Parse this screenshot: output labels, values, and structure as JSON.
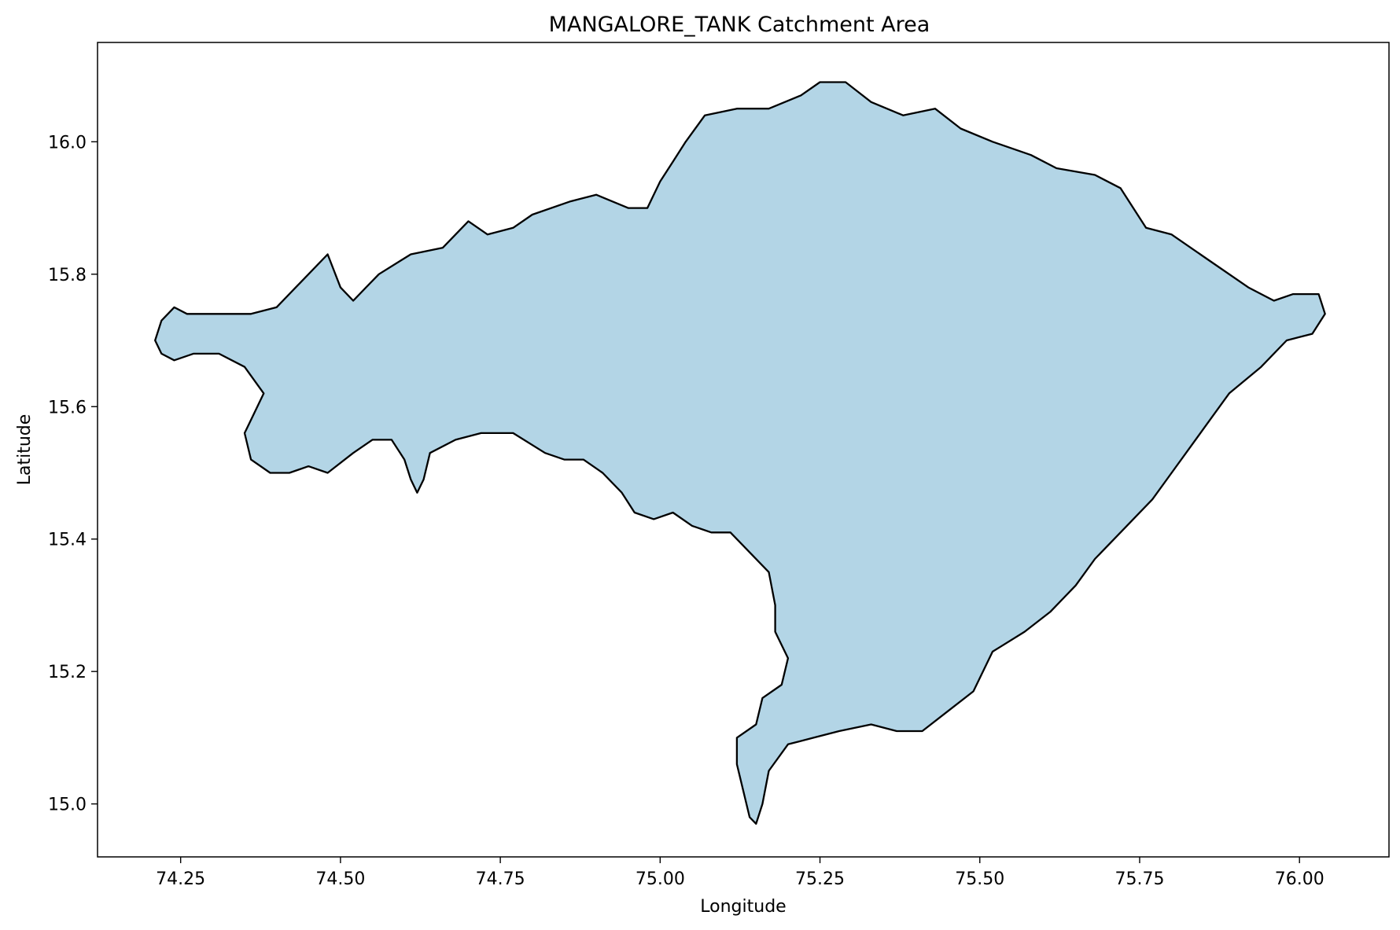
{
  "chart_data": {
    "type": "area",
    "title": "MANGALORE_TANK Catchment Area",
    "xlabel": "Longitude",
    "ylabel": "Latitude",
    "xlim": [
      74.12,
      76.14
    ],
    "ylim": [
      14.92,
      16.15
    ],
    "xticks": [
      {
        "value": 74.25,
        "label": "74.25"
      },
      {
        "value": 74.5,
        "label": "74.50"
      },
      {
        "value": 74.75,
        "label": "74.75"
      },
      {
        "value": 75.0,
        "label": "75.00"
      },
      {
        "value": 75.25,
        "label": "75.25"
      },
      {
        "value": 75.5,
        "label": "75.50"
      },
      {
        "value": 75.75,
        "label": "75.75"
      },
      {
        "value": 76.0,
        "label": "76.00"
      }
    ],
    "yticks": [
      {
        "value": 15.0,
        "label": "15.0"
      },
      {
        "value": 15.2,
        "label": "15.2"
      },
      {
        "value": 15.4,
        "label": "15.4"
      },
      {
        "value": 15.6,
        "label": "15.6"
      },
      {
        "value": 15.8,
        "label": "15.8"
      },
      {
        "value": 16.0,
        "label": "16.0"
      }
    ],
    "grid": false,
    "legend": "none",
    "fill_color": "#b3d5e6",
    "edge_color": "#000000",
    "polygon": [
      [
        74.21,
        15.7
      ],
      [
        74.22,
        15.68
      ],
      [
        74.24,
        15.67
      ],
      [
        74.27,
        15.68
      ],
      [
        74.31,
        15.68
      ],
      [
        74.35,
        15.66
      ],
      [
        74.38,
        15.62
      ],
      [
        74.36,
        15.58
      ],
      [
        74.35,
        15.56
      ],
      [
        74.36,
        15.52
      ],
      [
        74.39,
        15.5
      ],
      [
        74.42,
        15.5
      ],
      [
        74.45,
        15.51
      ],
      [
        74.48,
        15.5
      ],
      [
        74.52,
        15.53
      ],
      [
        74.55,
        15.55
      ],
      [
        74.58,
        15.55
      ],
      [
        74.6,
        15.52
      ],
      [
        74.61,
        15.49
      ],
      [
        74.62,
        15.47
      ],
      [
        74.63,
        15.49
      ],
      [
        74.64,
        15.53
      ],
      [
        74.68,
        15.55
      ],
      [
        74.72,
        15.56
      ],
      [
        74.77,
        15.56
      ],
      [
        74.82,
        15.53
      ],
      [
        74.85,
        15.52
      ],
      [
        74.88,
        15.52
      ],
      [
        74.91,
        15.5
      ],
      [
        74.94,
        15.47
      ],
      [
        74.96,
        15.44
      ],
      [
        74.99,
        15.43
      ],
      [
        75.02,
        15.44
      ],
      [
        75.05,
        15.42
      ],
      [
        75.08,
        15.41
      ],
      [
        75.11,
        15.41
      ],
      [
        75.14,
        15.38
      ],
      [
        75.17,
        15.35
      ],
      [
        75.18,
        15.3
      ],
      [
        75.18,
        15.26
      ],
      [
        75.2,
        15.22
      ],
      [
        75.19,
        15.18
      ],
      [
        75.16,
        15.16
      ],
      [
        75.15,
        15.12
      ],
      [
        75.12,
        15.1
      ],
      [
        75.12,
        15.06
      ],
      [
        75.13,
        15.02
      ],
      [
        75.14,
        14.98
      ],
      [
        75.15,
        14.97
      ],
      [
        75.16,
        15.0
      ],
      [
        75.17,
        15.05
      ],
      [
        75.2,
        15.09
      ],
      [
        75.24,
        15.1
      ],
      [
        75.28,
        15.11
      ],
      [
        75.33,
        15.12
      ],
      [
        75.37,
        15.11
      ],
      [
        75.41,
        15.11
      ],
      [
        75.45,
        15.14
      ],
      [
        75.49,
        15.17
      ],
      [
        75.52,
        15.23
      ],
      [
        75.57,
        15.26
      ],
      [
        75.61,
        15.29
      ],
      [
        75.65,
        15.33
      ],
      [
        75.68,
        15.37
      ],
      [
        75.73,
        15.42
      ],
      [
        75.77,
        15.46
      ],
      [
        75.8,
        15.5
      ],
      [
        75.83,
        15.54
      ],
      [
        75.86,
        15.58
      ],
      [
        75.89,
        15.62
      ],
      [
        75.94,
        15.66
      ],
      [
        75.98,
        15.7
      ],
      [
        76.02,
        15.71
      ],
      [
        76.04,
        15.74
      ],
      [
        76.03,
        15.77
      ],
      [
        75.99,
        15.77
      ],
      [
        75.96,
        15.76
      ],
      [
        75.92,
        15.78
      ],
      [
        75.86,
        15.82
      ],
      [
        75.8,
        15.86
      ],
      [
        75.76,
        15.87
      ],
      [
        75.74,
        15.9
      ],
      [
        75.72,
        15.93
      ],
      [
        75.68,
        15.95
      ],
      [
        75.62,
        15.96
      ],
      [
        75.58,
        15.98
      ],
      [
        75.52,
        16.0
      ],
      [
        75.47,
        16.02
      ],
      [
        75.43,
        16.05
      ],
      [
        75.38,
        16.04
      ],
      [
        75.33,
        16.06
      ],
      [
        75.29,
        16.09
      ],
      [
        75.25,
        16.09
      ],
      [
        75.22,
        16.07
      ],
      [
        75.17,
        16.05
      ],
      [
        75.12,
        16.05
      ],
      [
        75.07,
        16.04
      ],
      [
        75.04,
        16.0
      ],
      [
        75.02,
        15.97
      ],
      [
        75.0,
        15.94
      ],
      [
        74.98,
        15.9
      ],
      [
        74.95,
        15.9
      ],
      [
        74.9,
        15.92
      ],
      [
        74.86,
        15.91
      ],
      [
        74.8,
        15.89
      ],
      [
        74.77,
        15.87
      ],
      [
        74.73,
        15.86
      ],
      [
        74.7,
        15.88
      ],
      [
        74.66,
        15.84
      ],
      [
        74.61,
        15.83
      ],
      [
        74.56,
        15.8
      ],
      [
        74.54,
        15.78
      ],
      [
        74.52,
        15.76
      ],
      [
        74.5,
        15.78
      ],
      [
        74.48,
        15.83
      ],
      [
        74.45,
        15.8
      ],
      [
        74.43,
        15.78
      ],
      [
        74.4,
        15.75
      ],
      [
        74.36,
        15.74
      ],
      [
        74.31,
        15.74
      ],
      [
        74.26,
        15.74
      ],
      [
        74.24,
        15.75
      ],
      [
        74.22,
        15.73
      ]
    ]
  }
}
